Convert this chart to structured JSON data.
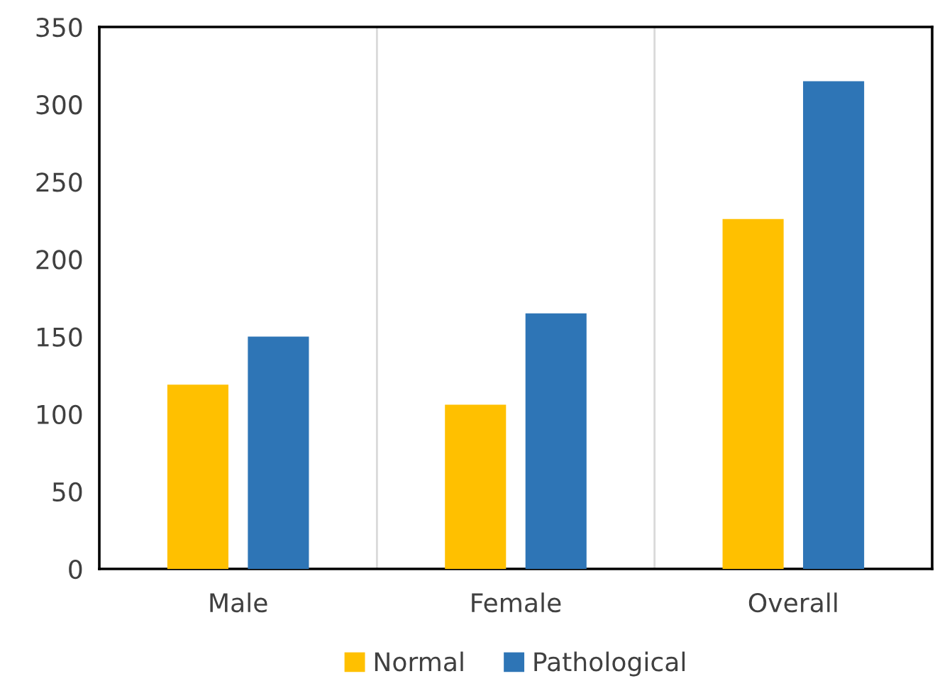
{
  "chart_data": {
    "type": "bar",
    "categories": [
      "Male",
      "Female",
      "Overall"
    ],
    "series": [
      {
        "name": "Normal",
        "color": "#ffc000",
        "values": [
          119,
          106,
          226
        ]
      },
      {
        "name": "Pathological",
        "color": "#2e75b6",
        "values": [
          150,
          165,
          315
        ]
      }
    ],
    "ylim": [
      0,
      350
    ],
    "yticks": [
      0,
      50,
      100,
      150,
      200,
      250,
      300,
      350
    ],
    "grid": "x",
    "legend": "bottom"
  }
}
